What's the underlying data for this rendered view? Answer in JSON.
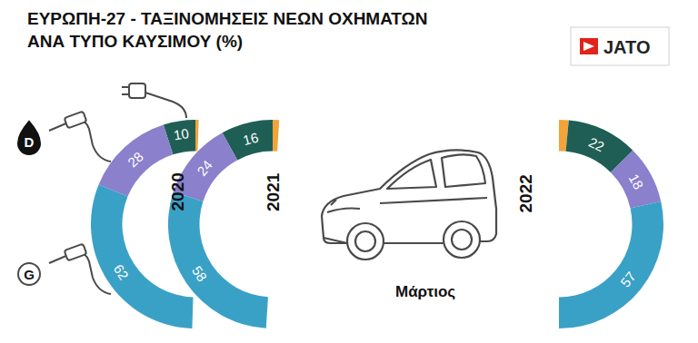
{
  "chart_data": {
    "type": "pie",
    "title": [
      "ΕΥΡΩΠΗ-27 - ΤΑΞΙΝΟΜΗΣΕΙΣ ΝΕΩΝ ΟΧΗΜΑΤΩΝ",
      "ΑΝΑ ΤΥΠΟ ΚΑΥΣΙΜΟΥ (%)"
    ],
    "logo": "JATO",
    "annotation": "Μάρτιος",
    "categories": [
      null,
      null,
      "D",
      "G"
    ],
    "colors": [
      "#f2a33a",
      "#1e5e55",
      "#8a80cc",
      "#3aa1c6"
    ],
    "series": [
      {
        "name": "2020",
        "values": [
          1,
          10,
          28,
          62
        ],
        "value_labels": [
          null,
          "10",
          "28",
          "62"
        ]
      },
      {
        "name": "2021",
        "values": [
          2,
          16,
          24,
          58
        ],
        "value_labels": [
          null,
          "16",
          "24",
          "58"
        ]
      },
      {
        "name": "2022",
        "values": [
          3,
          22,
          18,
          57
        ],
        "value_labels": [
          null,
          "22",
          "18",
          "57"
        ]
      }
    ],
    "data_labels": true,
    "legend": false
  }
}
